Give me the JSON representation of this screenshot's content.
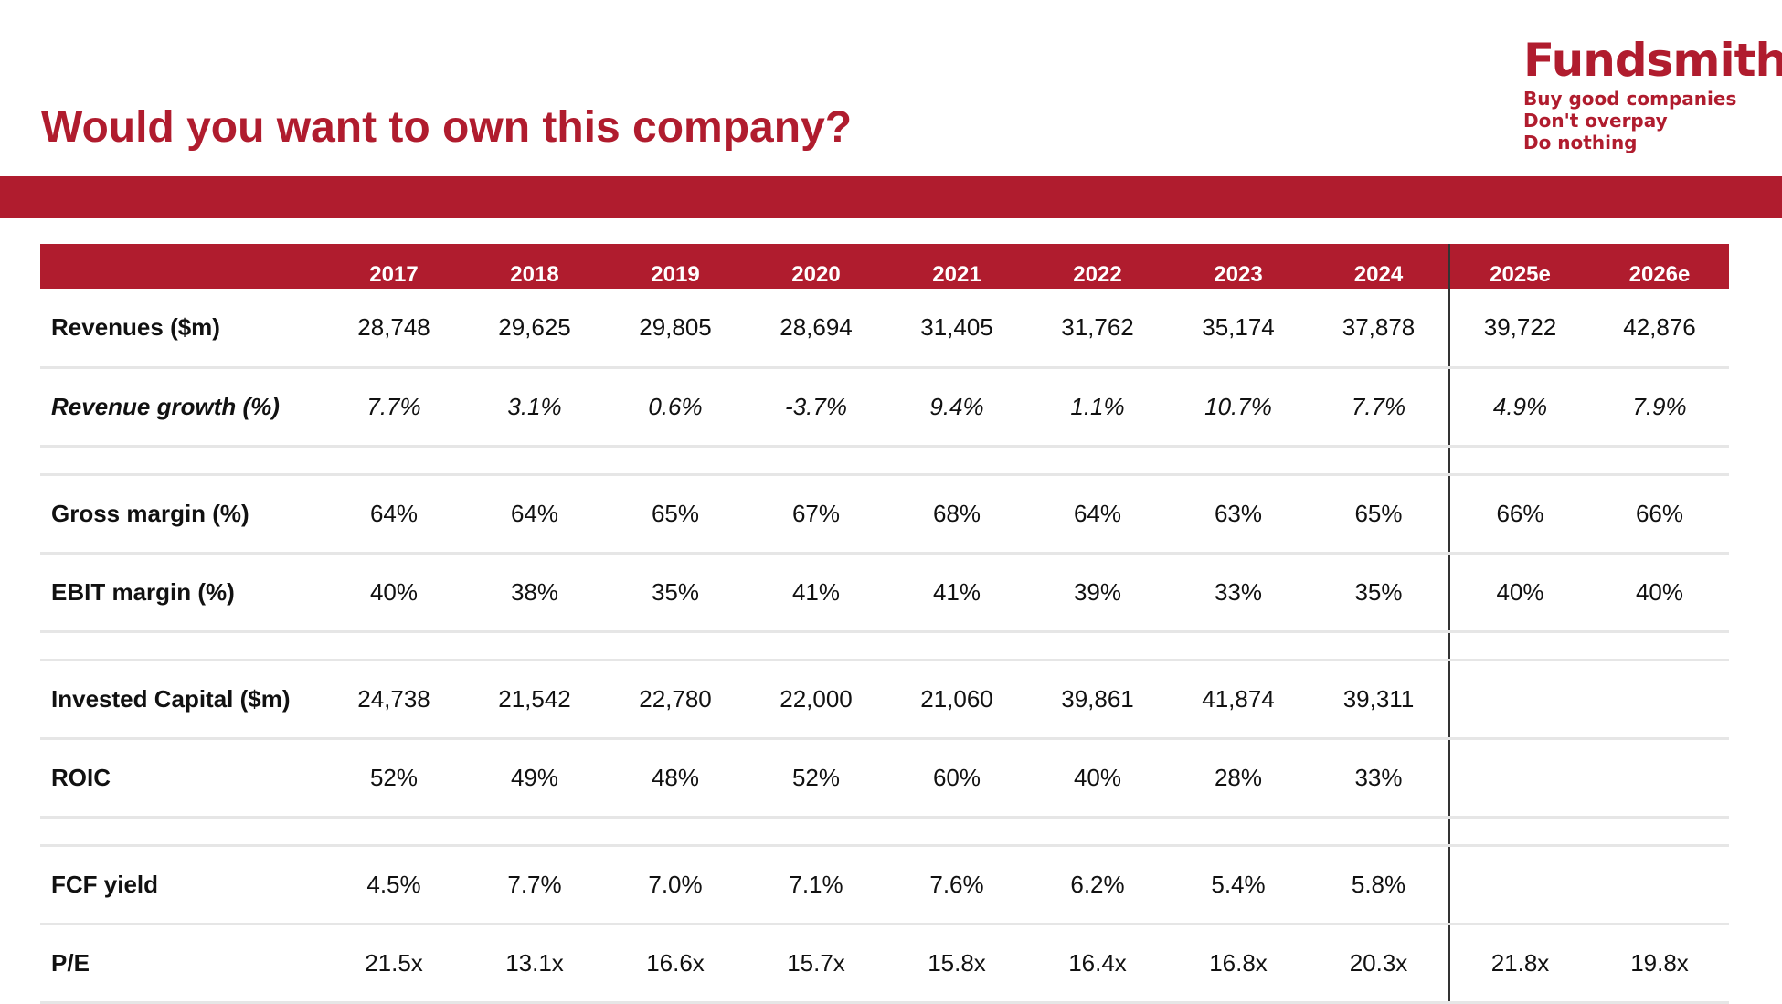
{
  "title": "Would you want to own this company?",
  "brand": {
    "name": "Fundsmith",
    "tagline": [
      "Buy good companies",
      "Don't overpay",
      "Do nothing"
    ]
  },
  "colors": {
    "accent": "#b01c2e",
    "text": "#111111",
    "row_divider": "#e6e6e6",
    "forecast_separator": "#333333"
  },
  "table": {
    "columns": [
      "2017",
      "2018",
      "2019",
      "2020",
      "2021",
      "2022",
      "2023",
      "2024",
      "2025e",
      "2026e"
    ],
    "rows": [
      {
        "label": "Revenues ($m)",
        "values": [
          "28,748",
          "29,625",
          "29,805",
          "28,694",
          "31,405",
          "31,762",
          "35,174",
          "37,878",
          "39,722",
          "42,876"
        ]
      },
      {
        "label": "Revenue growth (%)",
        "values": [
          "7.7%",
          "3.1%",
          "0.6%",
          "-3.7%",
          "9.4%",
          "1.1%",
          "10.7%",
          "7.7%",
          "4.9%",
          "7.9%"
        ]
      },
      {
        "label": "Gross margin (%)",
        "values": [
          "64%",
          "64%",
          "65%",
          "67%",
          "68%",
          "64%",
          "63%",
          "65%",
          "66%",
          "66%"
        ]
      },
      {
        "label": "EBIT margin (%)",
        "values": [
          "40%",
          "38%",
          "35%",
          "41%",
          "41%",
          "39%",
          "33%",
          "35%",
          "40%",
          "40%"
        ]
      },
      {
        "label": "Invested Capital ($m)",
        "values": [
          "24,738",
          "21,542",
          "22,780",
          "22,000",
          "21,060",
          "39,861",
          "41,874",
          "39,311",
          "",
          ""
        ]
      },
      {
        "label": "ROIC",
        "values": [
          "52%",
          "49%",
          "48%",
          "52%",
          "60%",
          "40%",
          "28%",
          "33%",
          "",
          ""
        ]
      },
      {
        "label": "FCF yield",
        "values": [
          "4.5%",
          "7.7%",
          "7.0%",
          "7.1%",
          "7.6%",
          "6.2%",
          "5.4%",
          "5.8%",
          "",
          ""
        ]
      },
      {
        "label": "P/E",
        "values": [
          "21.5x",
          "13.1x",
          "16.6x",
          "15.7x",
          "15.8x",
          "16.4x",
          "16.8x",
          "20.3x",
          "21.8x",
          "19.8x"
        ]
      }
    ]
  }
}
